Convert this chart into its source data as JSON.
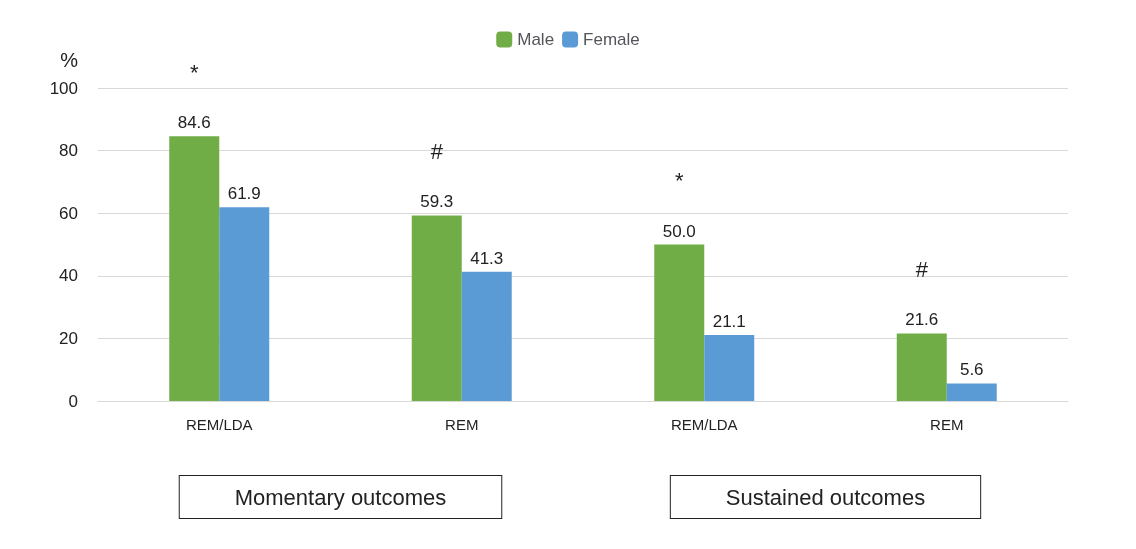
{
  "chart_data": {
    "type": "bar",
    "ylabel": "%",
    "categories": [
      "REM/LDA",
      "REM",
      "REM/LDA",
      "REM"
    ],
    "series": [
      {
        "name": "Male",
        "color": "#70ad47",
        "values": [
          84.6,
          59.3,
          50.0,
          21.6
        ],
        "value_labels": [
          "84.6",
          "59.3",
          "50.0",
          "21.6"
        ]
      },
      {
        "name": "Female",
        "color": "#5b9bd5",
        "values": [
          61.9,
          41.3,
          21.1,
          5.6
        ],
        "value_labels": [
          "61.9",
          "41.3",
          "21.1",
          "5.6"
        ]
      }
    ],
    "ylim": [
      0,
      100
    ],
    "yticks": [
      0,
      20,
      40,
      60,
      80,
      100
    ],
    "grid": "y",
    "legend": "top",
    "annotations": [
      "*",
      "#",
      "*",
      "#",
      "Momentary outcomes",
      "Sustained outcomes"
    ]
  }
}
